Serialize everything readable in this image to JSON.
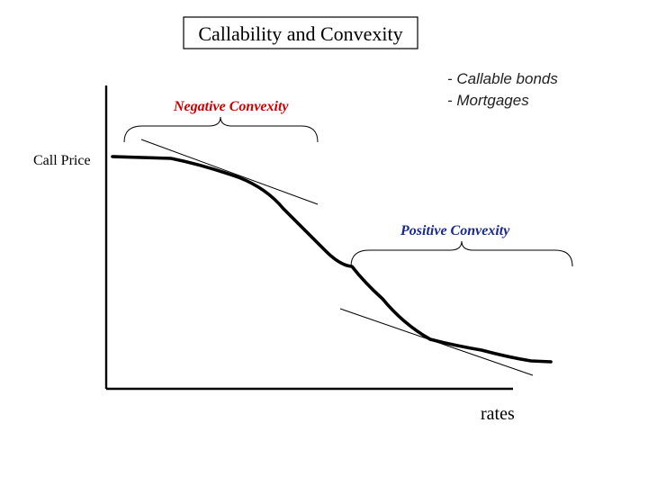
{
  "title": "Callability and Convexity",
  "axis": {
    "y_label": "Call Price",
    "x_label": "rates"
  },
  "negative_convexity": {
    "label": "Negative Convexity",
    "color": "#cc0000"
  },
  "positive_convexity": {
    "label": "Positive Convexity",
    "color": "#1a2a8c"
  },
  "examples": [
    "- Callable bonds",
    "- Mortgages"
  ],
  "colors": {
    "line": "#000000",
    "background": "#ffffff"
  }
}
